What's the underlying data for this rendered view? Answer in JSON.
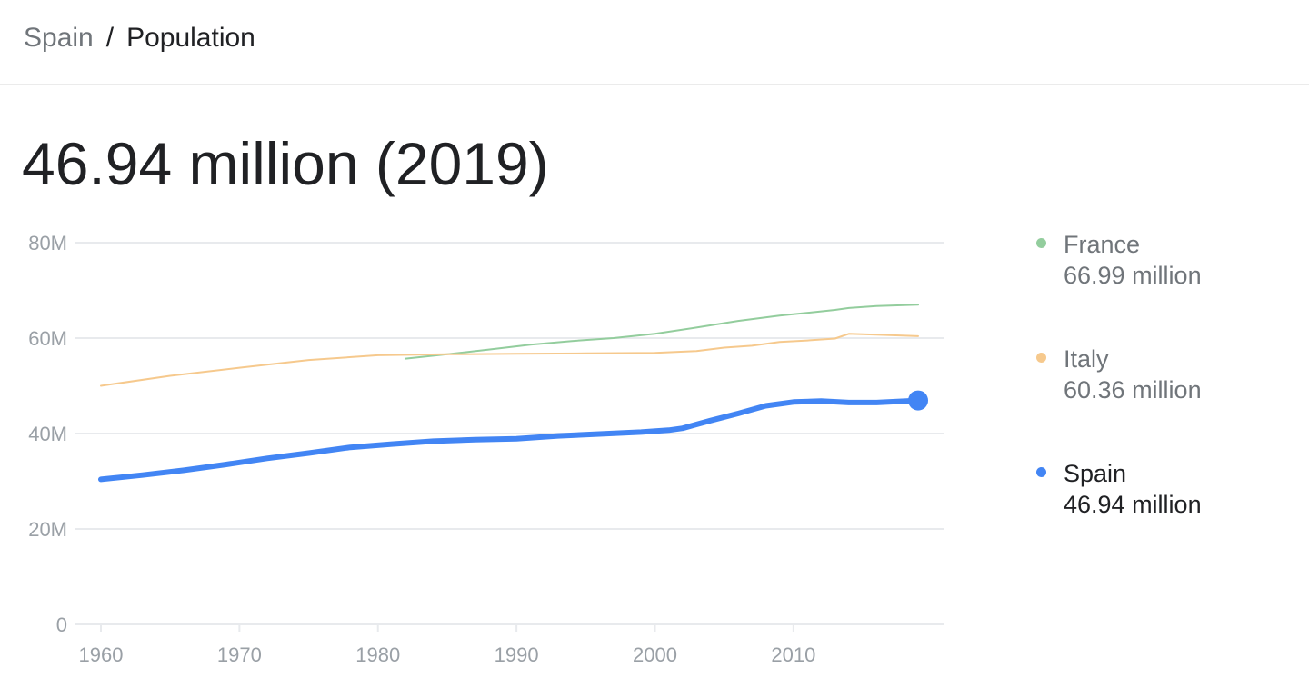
{
  "breadcrumb": {
    "parent": "Spain",
    "separator": "/",
    "current": "Population"
  },
  "headline": "46.94 million (2019)",
  "colors": {
    "France": "#93cd9d",
    "Italy": "#f6c98d",
    "Spain": "#4285f4",
    "grid": "#e8eaed",
    "tick_text": "#9aa0a6"
  },
  "legend": [
    {
      "name": "France",
      "value": "66.99 million",
      "color": "#93cd9d",
      "active": false
    },
    {
      "name": "Italy",
      "value": "60.36 million",
      "color": "#f6c98d",
      "active": false
    },
    {
      "name": "Spain",
      "value": "46.94 million",
      "color": "#4285f4",
      "active": true
    }
  ],
  "chart_data": {
    "type": "line",
    "title": "",
    "xlabel": "",
    "ylabel": "",
    "xlim": [
      1960,
      2019
    ],
    "ylim": [
      0,
      80
    ],
    "x_ticks": [
      1960,
      1970,
      1980,
      1990,
      2000,
      2010
    ],
    "x_tick_labels": [
      "1960",
      "1970",
      "1980",
      "1990",
      "2000",
      "2010"
    ],
    "y_ticks": [
      0,
      20,
      40,
      60,
      80
    ],
    "y_tick_labels": [
      "0",
      "20M",
      "40M",
      "60M",
      "80M"
    ],
    "grid": true,
    "legend_position": "right",
    "highlighted_series": "Spain",
    "series": [
      {
        "name": "France",
        "x": [
          1982,
          1985,
          1988,
          1991,
          1994,
          1997,
          2000,
          2003,
          2006,
          2009,
          2012,
          2013,
          2014,
          2016,
          2019
        ],
        "values": [
          55.7,
          56.6,
          57.6,
          58.6,
          59.4,
          60.0,
          60.9,
          62.2,
          63.6,
          64.7,
          65.6,
          65.9,
          66.3,
          66.7,
          67.0
        ]
      },
      {
        "name": "Italy",
        "x": [
          1960,
          1965,
          1970,
          1975,
          1980,
          1985,
          1990,
          1995,
          2000,
          2003,
          2005,
          2007,
          2009,
          2011,
          2013,
          2014,
          2016,
          2019
        ],
        "values": [
          50.0,
          52.1,
          53.8,
          55.4,
          56.4,
          56.6,
          56.7,
          56.8,
          56.9,
          57.3,
          58.0,
          58.4,
          59.2,
          59.5,
          59.9,
          60.9,
          60.7,
          60.4
        ]
      },
      {
        "name": "Spain",
        "x": [
          1960,
          1963,
          1966,
          1969,
          1972,
          1975,
          1978,
          1981,
          1984,
          1987,
          1990,
          1993,
          1996,
          1999,
          2001,
          2002,
          2004,
          2006,
          2008,
          2010,
          2012,
          2014,
          2016,
          2019
        ],
        "values": [
          30.4,
          31.3,
          32.3,
          33.5,
          34.8,
          35.9,
          37.1,
          37.8,
          38.4,
          38.7,
          38.9,
          39.5,
          39.9,
          40.3,
          40.7,
          41.1,
          42.7,
          44.2,
          45.8,
          46.6,
          46.8,
          46.5,
          46.5,
          46.94
        ]
      }
    ]
  }
}
